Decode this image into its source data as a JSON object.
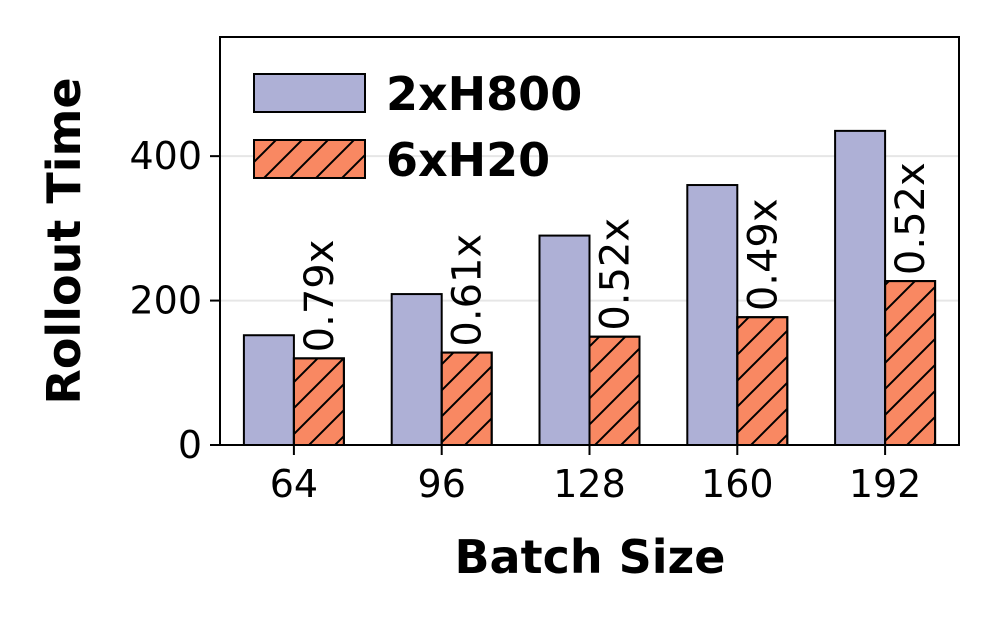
{
  "chart_data": {
    "type": "bar",
    "xlabel": "Batch Size",
    "ylabel": "Rollout Time",
    "categories": [
      "64",
      "96",
      "128",
      "160",
      "192"
    ],
    "series": [
      {
        "name": "2xH800",
        "values": [
          152,
          209,
          290,
          360,
          435
        ],
        "color": "#aeb0d6",
        "hatch": false
      },
      {
        "name": "6xH20",
        "values": [
          120,
          128,
          150,
          177,
          227
        ],
        "color": "#f98862",
        "hatch": true
      }
    ],
    "ratio_labels": [
      "0.79x",
      "0.61x",
      "0.52x",
      "0.49x",
      "0.52x"
    ],
    "yticks": [
      0,
      200,
      400
    ],
    "ylim": [
      0,
      565
    ],
    "grid": "horizontal",
    "legend_position": "top-left"
  }
}
